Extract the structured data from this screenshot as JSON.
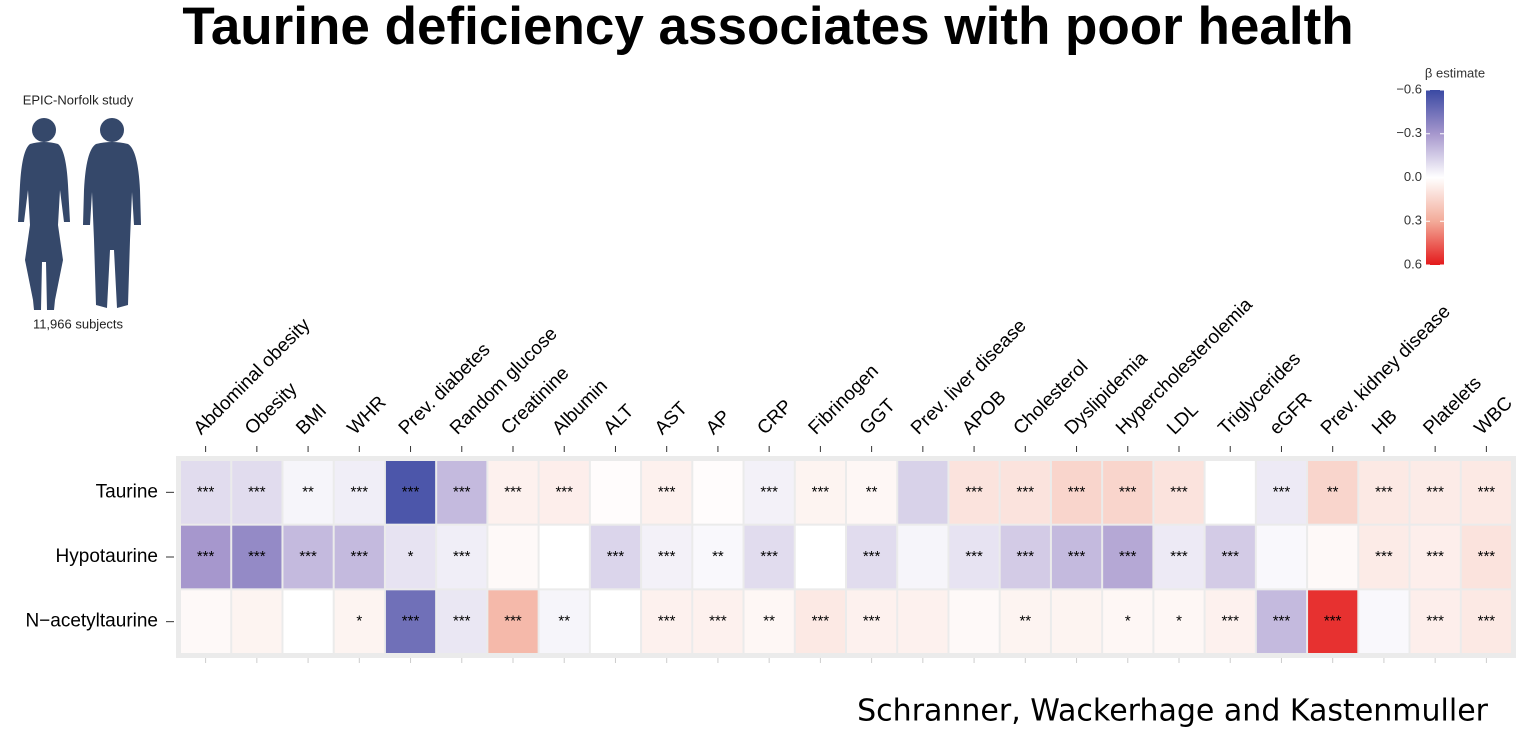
{
  "title": "Taurine deficiency associates with poor health",
  "study_label": "EPIC-Norfolk study",
  "subjects_label": "11,966 subjects",
  "credit": "Schranner, Wackerhage and Kastenmuller",
  "chart_data": {
    "type": "heatmap",
    "x": [
      "Abdominal obesity",
      "Obesity",
      "BMI",
      "WHR",
      "Prev. diabetes",
      "Random glucose",
      "Creatinine",
      "Albumin",
      "ALT",
      "AST",
      "AP",
      "CRP",
      "Fibrinogen",
      "GGT",
      "Prev. liver disease",
      "APOB",
      "Cholesterol",
      "Dyslipidemia",
      "Hypercholesterolemia",
      "LDL",
      "Triglycerides",
      "eGFR",
      "Prev. kidney disease",
      "HB",
      "Platelets",
      "WBC"
    ],
    "y": [
      "Taurine",
      "Hypotaurine",
      "N−acetyltaurine"
    ],
    "values": [
      [
        -0.1,
        -0.1,
        -0.03,
        -0.05,
        -0.55,
        -0.2,
        0.05,
        0.06,
        0.01,
        0.05,
        0.01,
        -0.04,
        0.04,
        0.03,
        -0.13,
        0.1,
        0.1,
        0.15,
        0.15,
        0.1,
        0.0,
        -0.06,
        0.15,
        0.08,
        0.07,
        0.08
      ],
      [
        -0.3,
        -0.35,
        -0.2,
        -0.2,
        -0.08,
        -0.05,
        0.02,
        0.0,
        -0.12,
        -0.04,
        -0.02,
        -0.1,
        0.0,
        -0.1,
        -0.03,
        -0.08,
        -0.15,
        -0.2,
        -0.25,
        -0.06,
        -0.15,
        -0.02,
        0.02,
        0.07,
        0.06,
        0.1
      ],
      [
        0.02,
        0.04,
        0.0,
        0.04,
        -0.45,
        -0.07,
        0.25,
        -0.03,
        0.0,
        0.05,
        0.05,
        0.03,
        0.08,
        0.05,
        0.05,
        0.02,
        0.04,
        0.04,
        0.03,
        0.03,
        0.05,
        -0.2,
        0.55,
        -0.02,
        0.06,
        0.08
      ]
    ],
    "stars": [
      [
        "***",
        "***",
        "**",
        "***",
        "***",
        "***",
        "***",
        "***",
        null,
        "***",
        null,
        "***",
        "***",
        "**",
        null,
        "***",
        "***",
        "***",
        "***",
        "***",
        null,
        "***",
        "**",
        "***",
        "***",
        "***"
      ],
      [
        "***",
        "***",
        "***",
        "***",
        "*",
        "***",
        null,
        null,
        "***",
        "***",
        "**",
        "***",
        null,
        "***",
        null,
        "***",
        "***",
        "***",
        "***",
        "***",
        "***",
        null,
        null,
        "***",
        "***",
        "***"
      ],
      [
        null,
        null,
        null,
        "*",
        "***",
        "***",
        "***",
        "**",
        null,
        "***",
        "***",
        "**",
        "***",
        "***",
        null,
        null,
        "**",
        null,
        "*",
        "*",
        "***",
        "***",
        "***",
        null,
        "***",
        "***"
      ]
    ],
    "colorbar_title": "β estimate",
    "zlim": [
      -0.6,
      0.6
    ],
    "zticks": [
      {
        "value": -0.6,
        "label": "−0.6"
      },
      {
        "value": -0.3,
        "label": "−0.3"
      },
      {
        "value": 0,
        "label": "0.0"
      },
      0.3,
      0.6
    ],
    "colors": [
      "#3a49a3",
      "#a697cd",
      "#ffffff",
      "#f3ab99",
      "#e4191b"
    ]
  }
}
